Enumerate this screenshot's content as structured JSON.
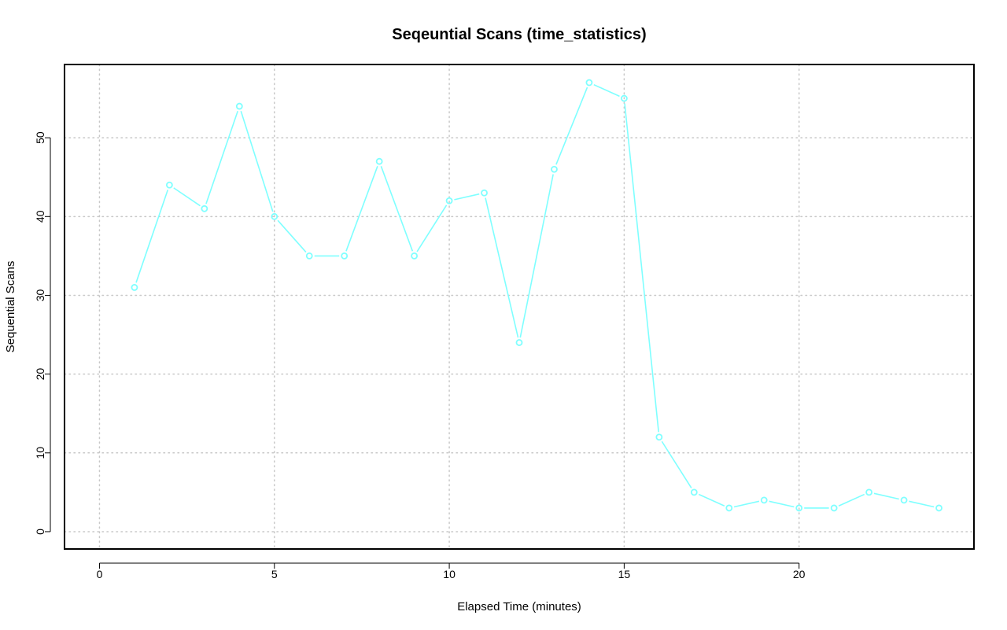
{
  "chart_data": {
    "type": "line",
    "title": "Seqeuntial Scans (time_statistics)",
    "xlabel": "Elapsed Time (minutes)",
    "ylabel": "Sequential Scans",
    "xlim": [
      -1,
      25
    ],
    "ylim": [
      -2.2,
      59.3
    ],
    "x_ticks": [
      0,
      5,
      10,
      15,
      20
    ],
    "y_ticks": [
      0,
      10,
      20,
      30,
      40,
      50
    ],
    "x_tick_labels": [
      "0",
      "5",
      "10",
      "15",
      "20"
    ],
    "y_tick_labels": [
      "0",
      "10",
      "20",
      "30",
      "40",
      "50"
    ],
    "grid": true,
    "series": [
      {
        "color": "#7fffff",
        "marker": "open-circle",
        "x": [
          1,
          2,
          3,
          4,
          5,
          6,
          7,
          8,
          9,
          10,
          11,
          12,
          13,
          14,
          15,
          16,
          17,
          18,
          19,
          20,
          21,
          22,
          23,
          24
        ],
        "values": [
          31,
          44,
          41,
          54,
          40,
          35,
          35,
          47,
          35,
          42,
          43,
          24,
          46,
          57,
          55,
          12,
          5,
          3,
          4,
          3,
          3,
          5,
          4,
          3
        ]
      }
    ]
  }
}
